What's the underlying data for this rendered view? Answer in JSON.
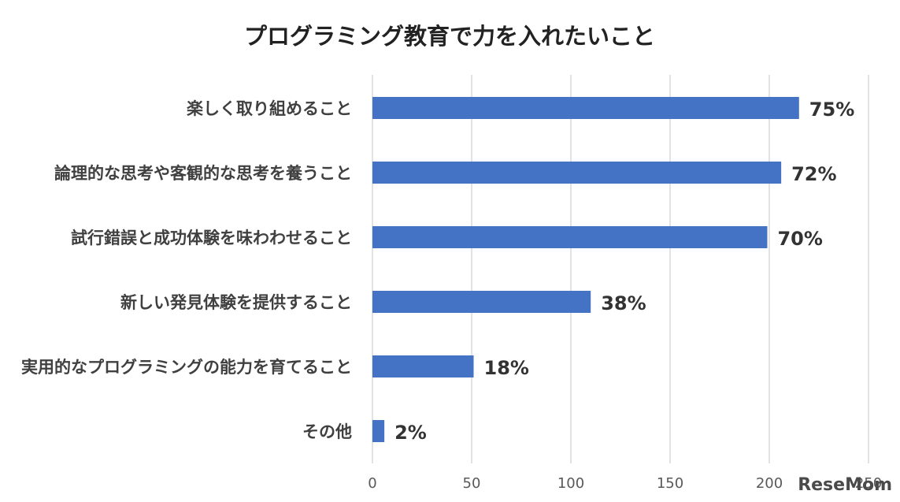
{
  "chart_data": {
    "type": "bar",
    "orientation": "horizontal",
    "title": "プログラミング教育で力を入れたいこと",
    "categories": [
      "楽しく取り組めること",
      "論理的な思考や客観的な思考を養うこと",
      "試行錯誤と成功体験を味わわせること",
      "新しい発見体験を提供すること",
      "実用的なプログラミングの能力を育てること",
      "その他"
    ],
    "values": [
      215,
      206,
      199,
      110,
      51,
      6
    ],
    "data_labels": [
      "75%",
      "72%",
      "70%",
      "38%",
      "18%",
      "2%"
    ],
    "xlim": [
      0,
      250
    ],
    "xticks": [
      "0",
      "50",
      "100",
      "150",
      "200",
      "250"
    ],
    "grid": true,
    "bar_color": "#4472C4"
  },
  "watermark": "ReseMom"
}
